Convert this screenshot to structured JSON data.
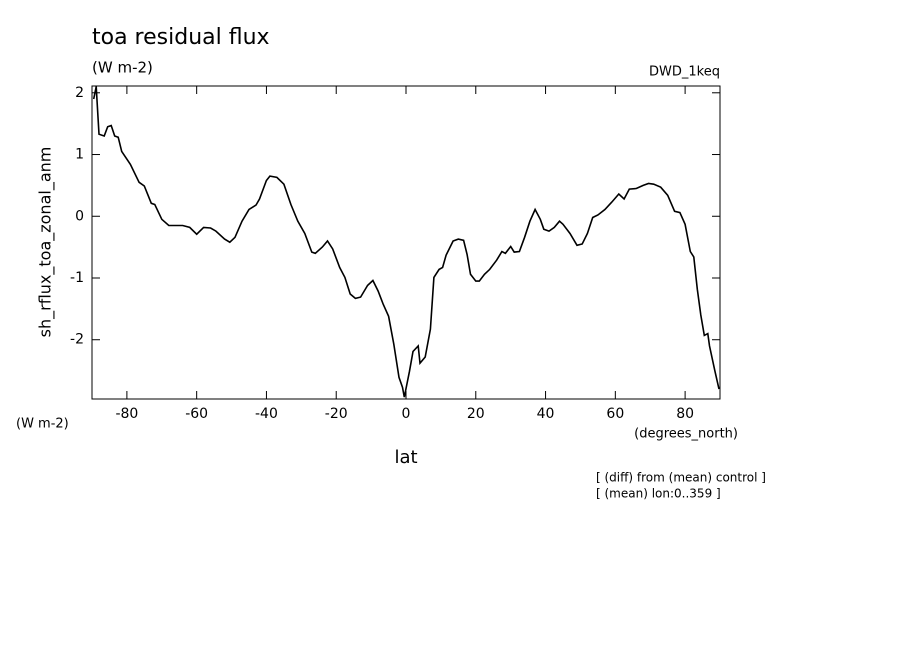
{
  "chart_data": {
    "type": "line",
    "title": "toa residual flux",
    "subtitle": "(W m-2)",
    "dataset_label": "DWD_1keq",
    "y_label": "sh_rflux_toa_zonal_anm",
    "y_units": "(W m-2)",
    "x_label": "lat",
    "x_units": "(degrees_north)",
    "annotations": [
      "[ (diff) from (mean) control ]",
      "[ (mean) lon:0..359 ]"
    ],
    "color": "#000000",
    "xlim": [
      -90,
      90
    ],
    "ylim": [
      -2.96,
      2.11
    ],
    "xticks": [
      -80,
      -60,
      -40,
      -20,
      0,
      20,
      40,
      60,
      80
    ],
    "yticks": [
      -2,
      -1,
      0,
      1,
      2
    ],
    "x": [
      -89.5,
      -88.8,
      -88,
      -86.5,
      -85.5,
      -84.5,
      -83.5,
      -82.5,
      -81.5,
      -79,
      -76.5,
      -75,
      -73,
      -72,
      -70,
      -68,
      -64,
      -62,
      -60,
      -58,
      -56,
      -54.5,
      -52,
      -50.5,
      -49,
      -47,
      -45,
      -43,
      -42,
      -40,
      -39,
      -37,
      -35,
      -33,
      -31,
      -29,
      -27,
      -26,
      -24,
      -22.5,
      -21,
      -19,
      -17.5,
      -16,
      -14.5,
      -13,
      -11,
      -9.5,
      -8,
      -6.5,
      -5,
      -3.5,
      -2,
      -1,
      -0.5,
      1,
      2,
      3.5,
      4,
      5.5,
      7,
      8,
      9.5,
      10.5,
      11.5,
      13.5,
      15,
      16.5,
      17.5,
      18.5,
      20,
      21,
      22.5,
      24,
      26,
      27.5,
      28.5,
      30,
      31,
      32.5,
      34,
      35.5,
      37,
      38.5,
      39.5,
      41,
      42.5,
      44,
      45,
      47,
      49,
      50.5,
      52,
      53.5,
      55,
      57,
      59,
      61,
      62.5,
      64,
      66,
      68,
      69.5,
      71,
      73,
      75,
      77,
      78.5,
      80,
      81.5,
      82.5,
      83.5,
      84.5,
      85.5,
      86.5,
      87,
      88.5,
      89.7
    ],
    "values": [
      1.9,
      2.1,
      1.33,
      1.3,
      1.45,
      1.47,
      1.3,
      1.28,
      1.05,
      0.84,
      0.55,
      0.49,
      0.21,
      0.19,
      -0.05,
      -0.15,
      -0.15,
      -0.18,
      -0.29,
      -0.18,
      -0.19,
      -0.24,
      -0.37,
      -0.42,
      -0.34,
      -0.08,
      0.11,
      0.18,
      0.28,
      0.58,
      0.65,
      0.63,
      0.52,
      0.19,
      -0.08,
      -0.28,
      -0.58,
      -0.6,
      -0.5,
      -0.4,
      -0.53,
      -0.83,
      -0.99,
      -1.26,
      -1.33,
      -1.31,
      -1.12,
      -1.04,
      -1.21,
      -1.43,
      -1.62,
      -2.07,
      -2.61,
      -2.77,
      -2.93,
      -2.51,
      -2.19,
      -2.1,
      -2.38,
      -2.28,
      -1.83,
      -0.99,
      -0.86,
      -0.83,
      -0.63,
      -0.4,
      -0.37,
      -0.39,
      -0.62,
      -0.94,
      -1.05,
      -1.05,
      -0.94,
      -0.86,
      -0.71,
      -0.57,
      -0.6,
      -0.49,
      -0.58,
      -0.57,
      -0.34,
      -0.08,
      0.11,
      -0.05,
      -0.21,
      -0.24,
      -0.18,
      -0.08,
      -0.13,
      -0.28,
      -0.47,
      -0.45,
      -0.28,
      -0.02,
      0.02,
      0.11,
      0.23,
      0.36,
      0.28,
      0.44,
      0.45,
      0.5,
      0.53,
      0.52,
      0.47,
      0.34,
      0.08,
      0.06,
      -0.13,
      -0.57,
      -0.66,
      -1.18,
      -1.6,
      -1.93,
      -1.9,
      -2.1,
      -2.5,
      -2.8
    ]
  }
}
